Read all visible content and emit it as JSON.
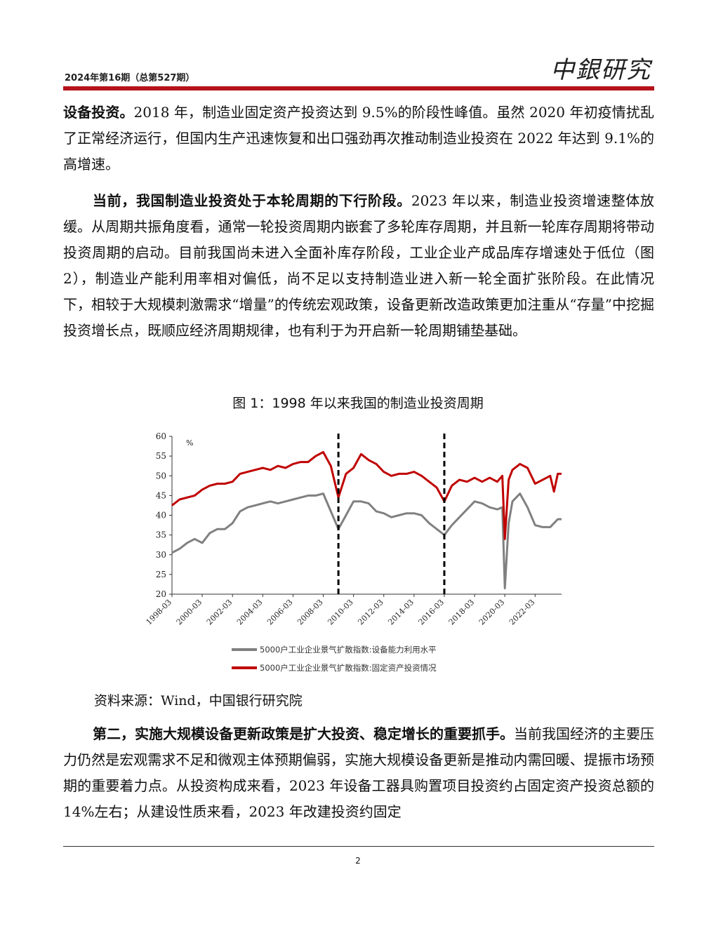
{
  "header": {
    "issue": "2024年第16期（总第527期）",
    "logo_text": "中銀研究"
  },
  "paragraphs": {
    "p1_bold": "设备投资。",
    "p1_text": "2018 年，制造业固定资产投资达到 9.5%的阶段性峰值。虽然 2020 年初疫情扰乱了正常经济运行，但国内生产迅速恢复和出口强劲再次推动制造业投资在 2022 年达到 9.1%的高增速。",
    "p2_bold": "当前，我国制造业投资处于本轮周期的下行阶段。",
    "p2_text": "2023 年以来，制造业投资增速整体放缓。从周期共振角度看，通常一轮投资周期内嵌套了多轮库存周期，并且新一轮库存周期将带动投资周期的启动。目前我国尚未进入全面补库存阶段，工业企业产成品库存增速处于低位（图 2），制造业产能利用率相对偏低，尚不足以支持制造业进入新一轮全面扩张阶段。在此情况下，相较于大规模刺激需求“增量”的传统宏观政策，设备更新改造政策更加注重从“存量”中挖掘投资增长点，既顺应经济周期规律，也有利于为开启新一轮周期铺垫基础。",
    "p4_bold": "第二，实施大规模设备更新政策是扩大投资、稳定增长的重要抓手。",
    "p4_text": "当前我国经济的主要压力仍然是宏观需求不足和微观主体预期偏弱，实施大规模设备更新是推动内需回暖、提振市场预期的重要着力点。从投资构成来看，2023 年设备工器具购置项目投资约占固定资产投资总额的 14%左右；从建设性质来看，2023 年改建投资约固定"
  },
  "figure": {
    "title": "图 1：1998 年以来我国的制造业投资周期",
    "source": "资料来源：Wind，中国银行研究院"
  },
  "page_number": "2",
  "chart_data": {
    "type": "line",
    "ylabel": "%",
    "ylim": [
      20,
      60
    ],
    "yticks": [
      20,
      25,
      30,
      35,
      40,
      45,
      50,
      55,
      60
    ],
    "x_start": "1998-03",
    "x_end": "2023-12",
    "xticks": [
      "1998-03",
      "2000-03",
      "2002-03",
      "2004-03",
      "2006-03",
      "2008-03",
      "2010-03",
      "2012-03",
      "2014-03",
      "2016-03",
      "2018-03",
      "2020-03",
      "2022-03"
    ],
    "vlines": [
      "2009-03",
      "2016-03"
    ],
    "x": [
      "1998-03",
      "1998-09",
      "1999-03",
      "1999-09",
      "2000-03",
      "2000-09",
      "2001-03",
      "2001-09",
      "2002-03",
      "2002-09",
      "2003-03",
      "2003-09",
      "2004-03",
      "2004-09",
      "2005-03",
      "2005-09",
      "2006-03",
      "2006-09",
      "2007-03",
      "2007-09",
      "2008-03",
      "2008-09",
      "2009-03",
      "2009-09",
      "2010-03",
      "2010-09",
      "2011-03",
      "2011-09",
      "2012-03",
      "2012-09",
      "2013-03",
      "2013-09",
      "2014-03",
      "2014-09",
      "2015-03",
      "2015-09",
      "2016-03",
      "2016-09",
      "2017-03",
      "2017-09",
      "2018-03",
      "2018-09",
      "2019-03",
      "2019-09",
      "2020-01",
      "2020-03",
      "2020-06",
      "2020-09",
      "2021-03",
      "2021-09",
      "2022-03",
      "2022-09",
      "2023-03",
      "2023-06",
      "2023-09",
      "2023-12"
    ],
    "series": [
      {
        "name": "5000户工业企业景气扩散指数:设备能力利用水平",
        "color": "#808080",
        "values": [
          30.5,
          31.5,
          33,
          34,
          33,
          35.5,
          36.5,
          36.5,
          38,
          41,
          42,
          42.5,
          43,
          43.5,
          43,
          43.5,
          44,
          44.5,
          45,
          45,
          45.5,
          41,
          36.5,
          40,
          43.5,
          43.5,
          43,
          41,
          40.5,
          39.5,
          40,
          40.5,
          40.5,
          40,
          38,
          36.5,
          35,
          37.5,
          39.5,
          41.5,
          43.5,
          43,
          42,
          41.5,
          42,
          21.5,
          38,
          43.5,
          45.5,
          42,
          37.5,
          37,
          37,
          38,
          39,
          39
        ]
      },
      {
        "name": "5000户工业企业景气扩散指数:固定资产投资情况",
        "color": "#c00000",
        "values": [
          42.5,
          44,
          44.5,
          45,
          46.5,
          47.5,
          48,
          48,
          48.5,
          50.5,
          51,
          51.5,
          52,
          51.5,
          52.5,
          52,
          53,
          53.5,
          53.5,
          55,
          56,
          52.5,
          44.5,
          50.5,
          52,
          55.5,
          54,
          53,
          51,
          50,
          50.5,
          50.5,
          51,
          50,
          48.5,
          47,
          43.5,
          47.5,
          49,
          48.5,
          49.5,
          48.5,
          49.5,
          48.5,
          50,
          34,
          49,
          51.5,
          53,
          52,
          48,
          49,
          50,
          46,
          50.5,
          50.5
        ]
      }
    ]
  }
}
